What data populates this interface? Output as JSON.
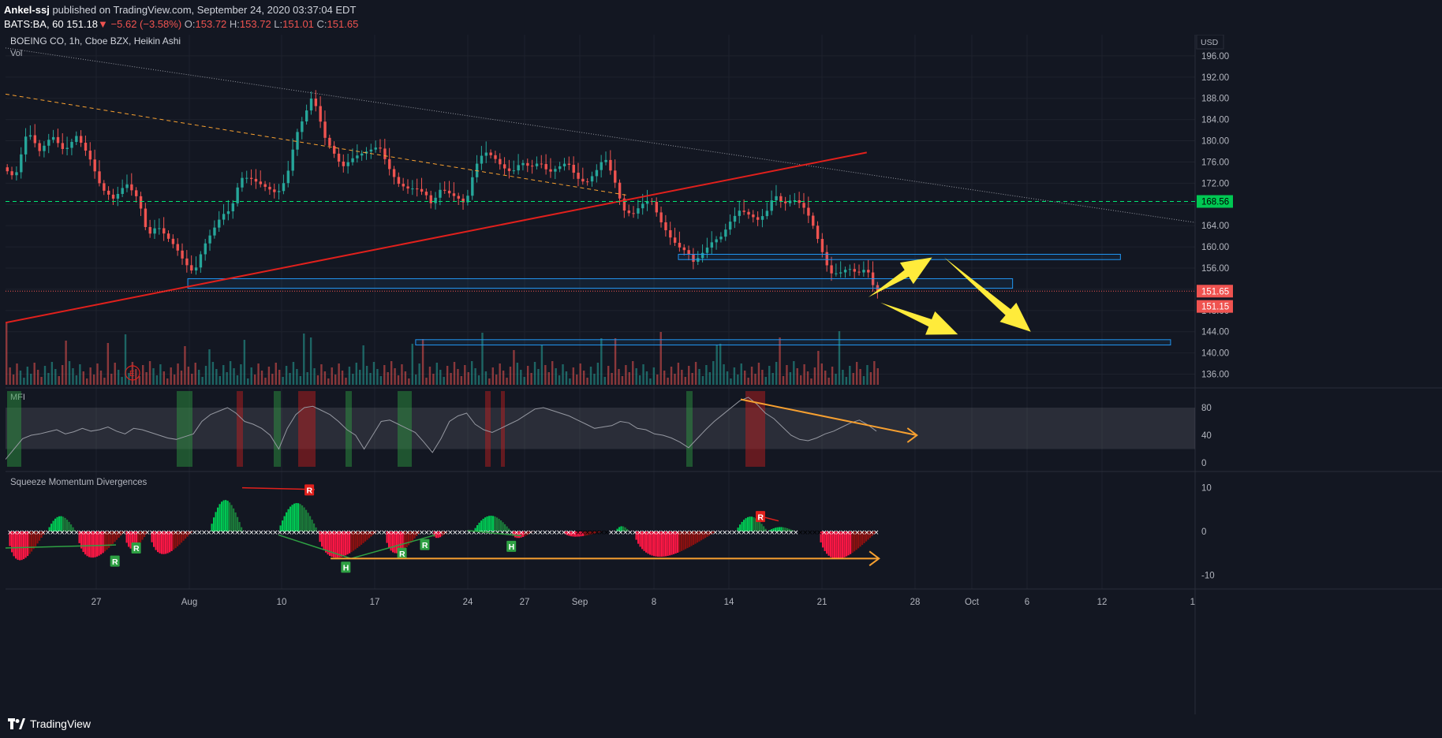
{
  "header": {
    "publisher": "Ankel-ssj",
    "published_text": "published on TradingView.com, September 24, 2020 03:37:04 EDT",
    "symbol": "BATS:BA, 60",
    "price": "151.18",
    "change": "−5.62 (−3.58%)",
    "open_label": "O:",
    "open": "153.72",
    "high_label": "H:",
    "high": "153.72",
    "low_label": "L:",
    "low": "151.01",
    "close_label": "C:",
    "close": "151.65"
  },
  "footer": {
    "brand": "TradingView",
    "brand_icon": "tradingview-logo-icon"
  },
  "colors": {
    "background": "#131722",
    "grid": "#1e222d",
    "up": "#26a69a",
    "down": "#ef5350",
    "trend_red": "#e0201c",
    "orange": "#f7a030",
    "yellow": "#ffeb3b",
    "zone": "#2196f3",
    "green_line": "#4caf50"
  },
  "chart_data": [
    {
      "type": "candlestick",
      "title": "BOEING CO, 1h, Cboe BZX, Heikin Ashi",
      "volume_label": "Vol",
      "currency": "USD",
      "ylim": [
        134,
        200
      ],
      "y_ticks": [
        "196.00",
        "192.00",
        "188.00",
        "184.00",
        "180.00",
        "176.00",
        "172.00",
        "168.00",
        "164.00",
        "160.00",
        "156.00",
        "152.00",
        "148.00",
        "144.00",
        "140.00",
        "136.00"
      ],
      "x_ticks": [
        "27",
        "Aug",
        "10",
        "17",
        "24",
        "27",
        "Sep",
        "8",
        "14",
        "21",
        "28",
        "Oct",
        "6",
        "12",
        "1"
      ],
      "price_labels": [
        {
          "text": "168.56",
          "value": 168.56,
          "color": "#00c853",
          "text_color": "#000000"
        },
        {
          "text": "151.65",
          "value": 151.65,
          "color": "#ef5350",
          "text_color": "#ffffff"
        },
        {
          "text": "151.15",
          "value": 151.15,
          "color": "#ef5350",
          "text_color": "#ffffff"
        }
      ],
      "price_path": [
        [
          0,
          175
        ],
        [
          8,
          173
        ],
        [
          16,
          182
        ],
        [
          24,
          178
        ],
        [
          32,
          181
        ],
        [
          40,
          178
        ],
        [
          48,
          181
        ],
        [
          56,
          177
        ],
        [
          64,
          171
        ],
        [
          72,
          169
        ],
        [
          80,
          172
        ],
        [
          88,
          169
        ],
        [
          94,
          162
        ],
        [
          100,
          164
        ],
        [
          106,
          162
        ],
        [
          112,
          160
        ],
        [
          118,
          157
        ],
        [
          124,
          155
        ],
        [
          130,
          160
        ],
        [
          136,
          163
        ],
        [
          142,
          166
        ],
        [
          148,
          167
        ],
        [
          154,
          173
        ],
        [
          160,
          173
        ],
        [
          166,
          172
        ],
        [
          172,
          171
        ],
        [
          178,
          170
        ],
        [
          184,
          173
        ],
        [
          190,
          181
        ],
        [
          196,
          185
        ],
        [
          200,
          188
        ],
        [
          204,
          186
        ],
        [
          208,
          181
        ],
        [
          214,
          178
        ],
        [
          220,
          175
        ],
        [
          228,
          177
        ],
        [
          236,
          178
        ],
        [
          244,
          179
        ],
        [
          250,
          175
        ],
        [
          256,
          172
        ],
        [
          262,
          171
        ],
        [
          268,
          171
        ],
        [
          274,
          170
        ],
        [
          278,
          168
        ],
        [
          284,
          171
        ],
        [
          290,
          170
        ],
        [
          296,
          169
        ],
        [
          300,
          168
        ],
        [
          306,
          175
        ],
        [
          312,
          178
        ],
        [
          318,
          177
        ],
        [
          324,
          175
        ],
        [
          330,
          174
        ],
        [
          336,
          176
        ],
        [
          342,
          175
        ],
        [
          348,
          176
        ],
        [
          354,
          174
        ],
        [
          360,
          175
        ],
        [
          366,
          176
        ],
        [
          372,
          173
        ],
        [
          378,
          172
        ],
        [
          384,
          174
        ],
        [
          390,
          177
        ],
        [
          396,
          173
        ],
        [
          402,
          167
        ],
        [
          408,
          166
        ],
        [
          414,
          168
        ],
        [
          420,
          169
        ],
        [
          426,
          165
        ],
        [
          432,
          162
        ],
        [
          438,
          160
        ],
        [
          444,
          159
        ],
        [
          448,
          157
        ],
        [
          454,
          159
        ],
        [
          460,
          161
        ],
        [
          466,
          162
        ],
        [
          472,
          165
        ],
        [
          478,
          167
        ],
        [
          484,
          166
        ],
        [
          490,
          165
        ],
        [
          496,
          167
        ],
        [
          500,
          170
        ],
        [
          506,
          168
        ],
        [
          512,
          169
        ],
        [
          518,
          168
        ],
        [
          524,
          165
        ],
        [
          530,
          160
        ],
        [
          536,
          155
        ],
        [
          542,
          155
        ],
        [
          548,
          156
        ],
        [
          554,
          155
        ],
        [
          560,
          156
        ],
        [
          565,
          152
        ],
        [
          567,
          151.65
        ]
      ],
      "reference_lines": [
        {
          "name": "resistance-dotted",
          "points": [
            [
              0,
              197.5
            ],
            [
              1536,
              164.6
            ]
          ]
        },
        {
          "name": "orange-dashed-trend",
          "points": [
            [
              0,
              188.8
            ],
            [
              410,
              169.7
            ]
          ]
        },
        {
          "name": "red-support-trend",
          "points": [
            [
              0,
              145.7
            ],
            [
              567,
              177.8
            ]
          ]
        },
        {
          "name": "green-horizontal",
          "points": [
            [
              0,
              168.56
            ],
            [
              1536,
              168.56
            ]
          ]
        },
        {
          "name": "red-dotted-last",
          "points": [
            [
              0,
              151.65
            ],
            [
              1536,
              151.65
            ]
          ]
        }
      ],
      "zones": [
        {
          "from_x": 443,
          "to_x": 734,
          "top": 158.6,
          "bottom": 157.6
        },
        {
          "from_x": 120,
          "to_x": 663,
          "top": 154.0,
          "bottom": 152.2
        },
        {
          "from_x": 270,
          "to_x": 767,
          "top": 142.5,
          "bottom": 141.5
        }
      ],
      "yellow_arrows": [
        {
          "from": [
            568,
            150.5
          ],
          "to": [
            610,
            158.0
          ]
        },
        {
          "from": [
            618,
            158.0
          ],
          "to": [
            675,
            144.0
          ]
        },
        {
          "from": [
            576,
            149.5
          ],
          "to": [
            627,
            143.5
          ]
        }
      ]
    },
    {
      "type": "line",
      "title": "MFI",
      "ylim": [
        -8,
        104
      ],
      "y_ticks": [
        "80",
        "40",
        "0"
      ],
      "band": [
        20,
        80
      ],
      "values": [
        5,
        20,
        35,
        40,
        42,
        45,
        48,
        42,
        45,
        50,
        46,
        48,
        52,
        46,
        42,
        50,
        48,
        44,
        40,
        36,
        34,
        38,
        42,
        60,
        70,
        75,
        80,
        72,
        60,
        56,
        50,
        40,
        20,
        50,
        70,
        80,
        82,
        76,
        70,
        60,
        48,
        40,
        20,
        40,
        60,
        62,
        56,
        50,
        44,
        30,
        15,
        35,
        60,
        68,
        72,
        56,
        48,
        44,
        50,
        56,
        62,
        70,
        78,
        80,
        76,
        72,
        68,
        62,
        56,
        50,
        52,
        54,
        60,
        58,
        50,
        48,
        42,
        40,
        36,
        30,
        22,
        35,
        48,
        60,
        70,
        80,
        90,
        95,
        85,
        72,
        64,
        52,
        40,
        34,
        32,
        36,
        42,
        46,
        52,
        58,
        62,
        55,
        46
      ],
      "trend_arrow": {
        "from": [
          484,
          92
        ],
        "to": [
          600,
          40
        ]
      }
    },
    {
      "type": "bar",
      "title": "Squeeze Momentum Divergences",
      "ylim": [
        -13,
        13
      ],
      "y_ticks": [
        "10",
        "0",
        "-10"
      ],
      "labels": [
        {
          "text": "R",
          "kind": "bull",
          "x": 72,
          "y": -6.8
        },
        {
          "text": "R",
          "kind": "bull",
          "x": 86,
          "y": -3.8
        },
        {
          "text": "R",
          "kind": "bear",
          "x": 200,
          "y": 9.5
        },
        {
          "text": "H",
          "kind": "bull",
          "x": 224,
          "y": -8.2
        },
        {
          "text": "R",
          "kind": "bull",
          "x": 261,
          "y": -5.0
        },
        {
          "text": "R",
          "kind": "bull",
          "x": 276,
          "y": -3.0
        },
        {
          "text": "H",
          "kind": "bull",
          "x": 333,
          "y": -3.4
        },
        {
          "text": "R",
          "kind": "bear",
          "x": 497,
          "y": 3.4
        }
      ],
      "trend_arrow": {
        "from": [
          214,
          -6.2
        ],
        "to": [
          575,
          -6.2
        ]
      }
    }
  ]
}
